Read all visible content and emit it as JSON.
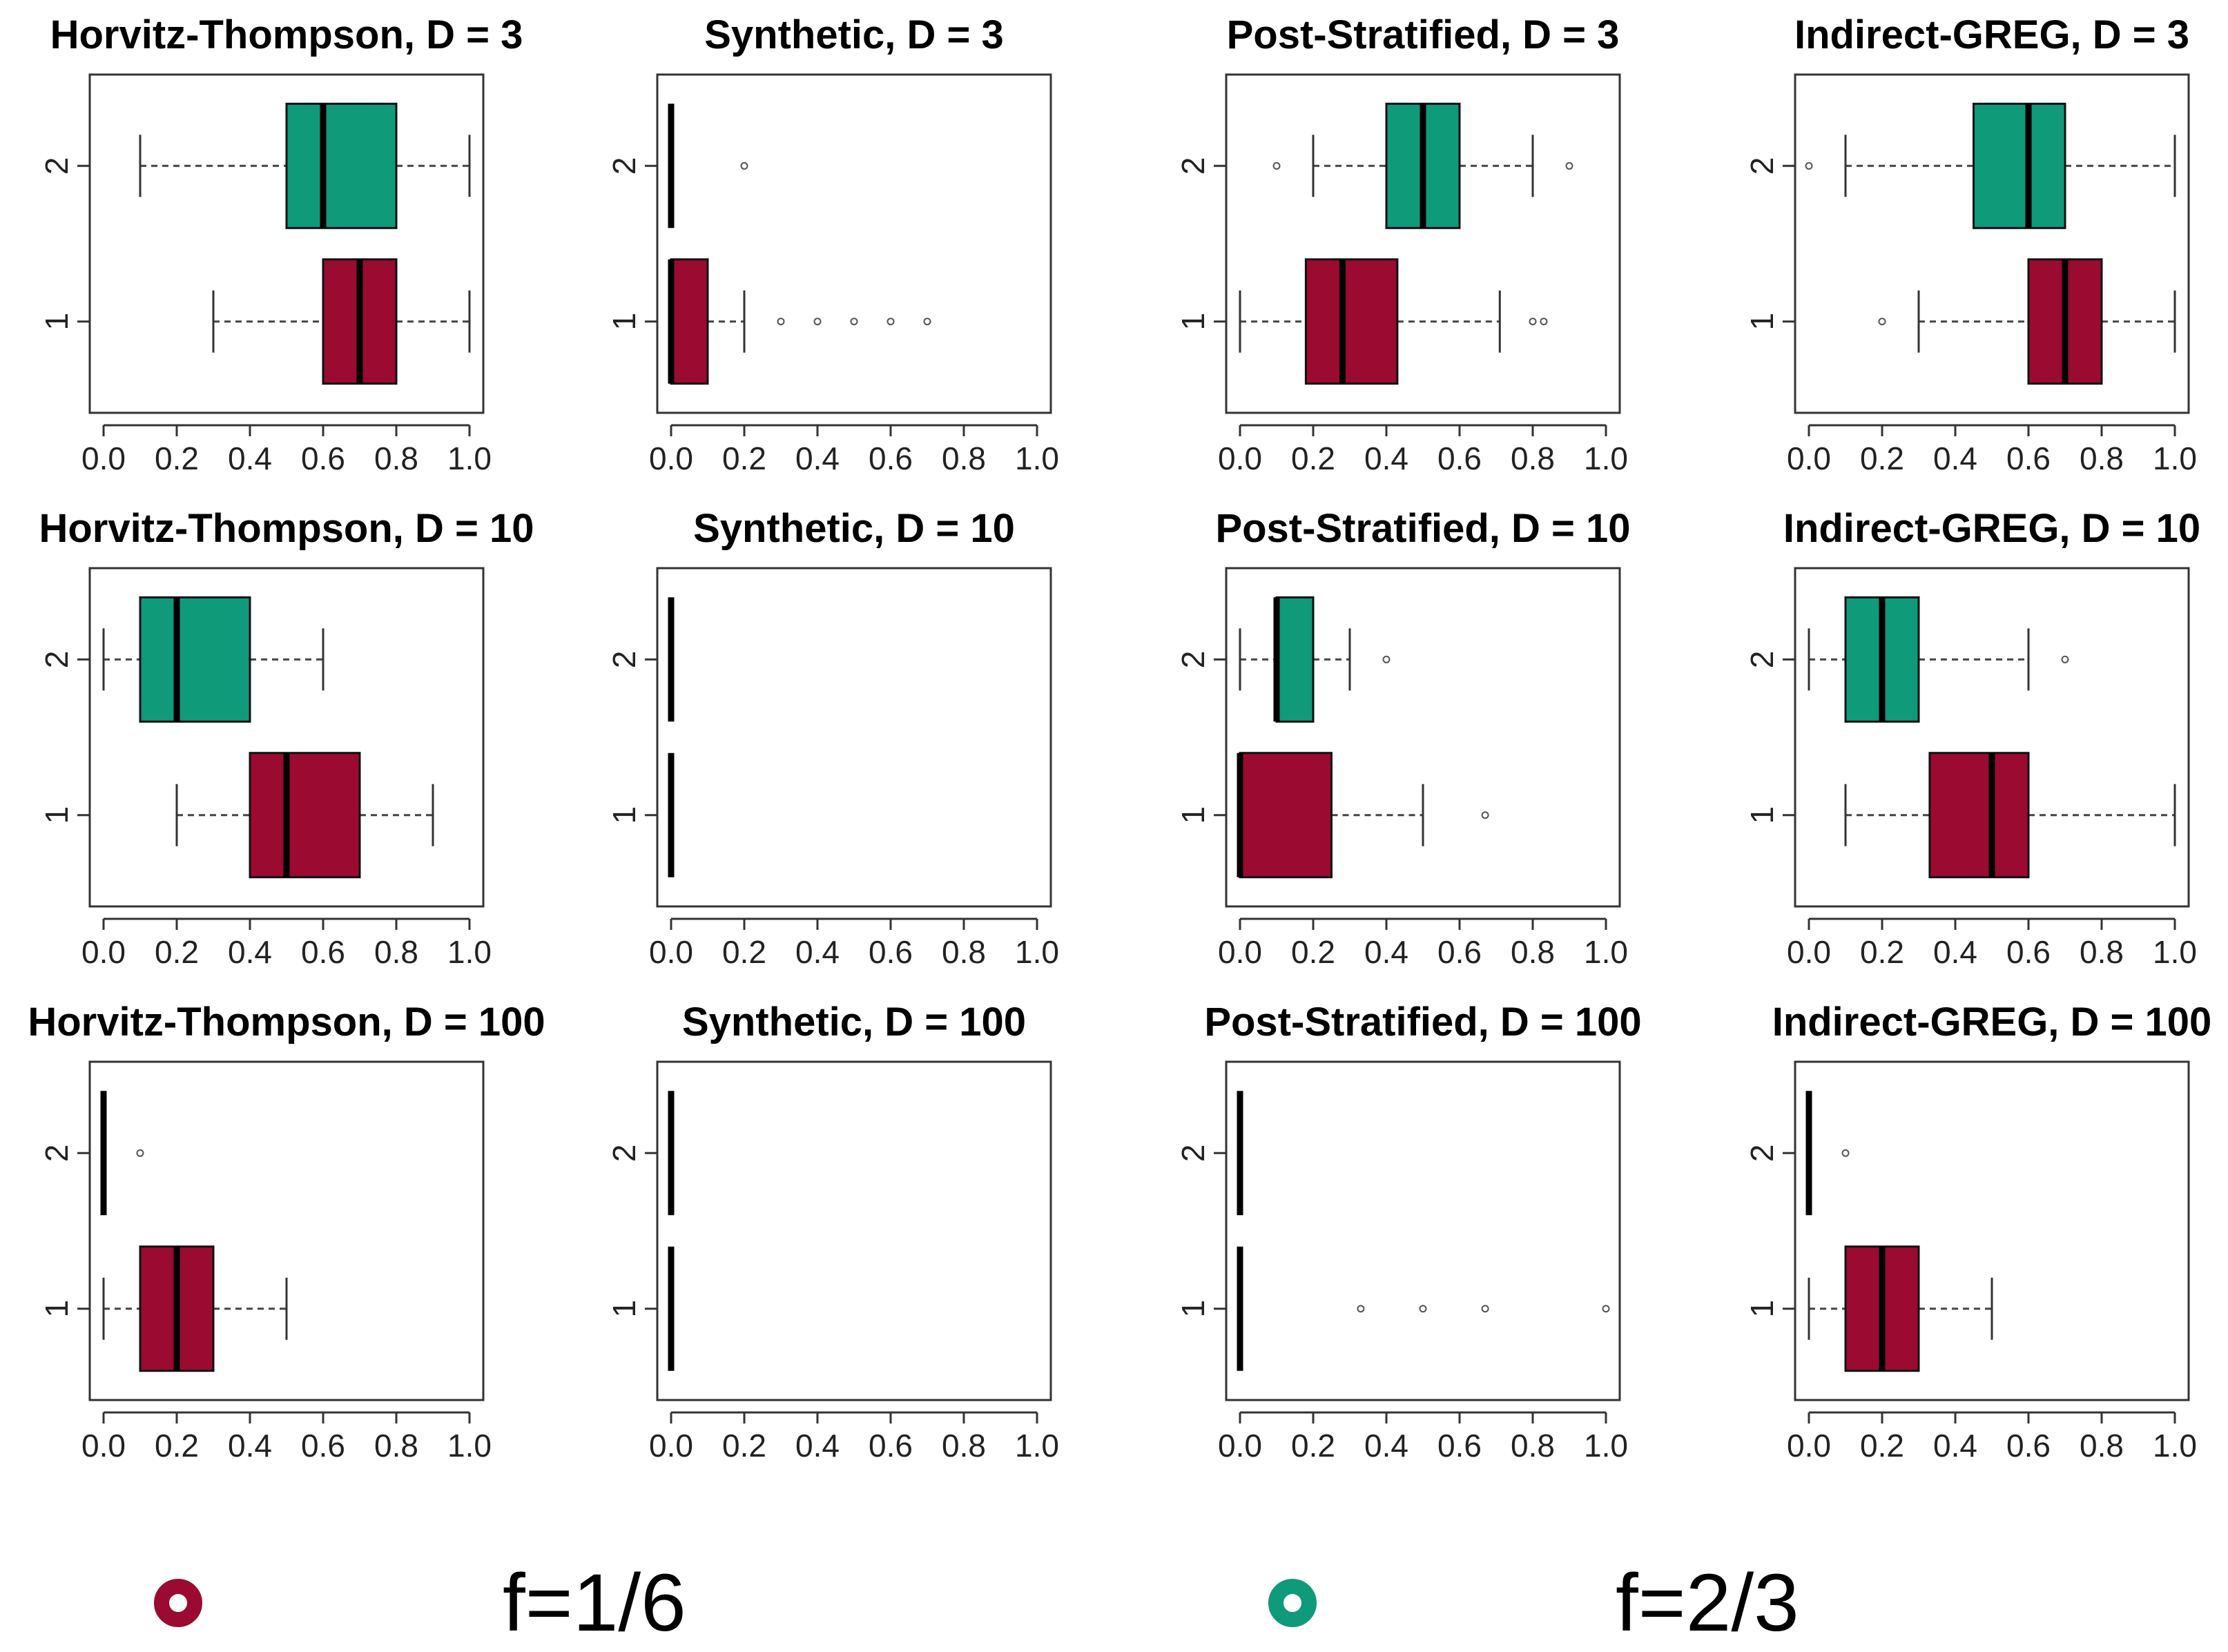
{
  "chart_data": {
    "type": "boxplot",
    "x_ticks": [
      "0.0",
      "0.2",
      "0.4",
      "0.6",
      "0.8",
      "1.0"
    ],
    "xlim": [
      0,
      1
    ],
    "y_ticks": [
      "1",
      "2"
    ],
    "series_colors": {
      "1": "#9b0a30",
      "2": "#0f9a7a"
    },
    "legend": [
      {
        "label": "f=1/6",
        "color": "#9b0a30"
      },
      {
        "label": "f=2/3",
        "color": "#0f9a7a"
      }
    ],
    "panels": [
      {
        "title": "Horvitz-Thompson, D = 3",
        "boxes": [
          {
            "group": "1",
            "whisker_low": 0.3,
            "q1": 0.6,
            "median": 0.7,
            "q3": 0.8,
            "whisker_high": 1.0,
            "outliers": []
          },
          {
            "group": "2",
            "whisker_low": 0.1,
            "q1": 0.5,
            "median": 0.6,
            "q3": 0.8,
            "whisker_high": 1.0,
            "outliers": []
          }
        ]
      },
      {
        "title": "Synthetic, D = 3",
        "boxes": [
          {
            "group": "1",
            "whisker_low": 0.0,
            "q1": 0.0,
            "median": 0.0,
            "q3": 0.1,
            "whisker_high": 0.2,
            "outliers": [
              0.3,
              0.4,
              0.5,
              0.6,
              0.7
            ]
          },
          {
            "group": "2",
            "whisker_low": 0.0,
            "q1": 0.0,
            "median": 0.0,
            "q3": 0.0,
            "whisker_high": 0.0,
            "outliers": [
              0.2
            ]
          }
        ]
      },
      {
        "title": "Post-Stratified, D = 3",
        "boxes": [
          {
            "group": "1",
            "whisker_low": 0.0,
            "q1": 0.18,
            "median": 0.28,
            "q3": 0.43,
            "whisker_high": 0.71,
            "outliers": [
              0.8,
              0.83
            ]
          },
          {
            "group": "2",
            "whisker_low": 0.2,
            "q1": 0.4,
            "median": 0.5,
            "q3": 0.6,
            "whisker_high": 0.8,
            "outliers": [
              0.1,
              0.9
            ]
          }
        ]
      },
      {
        "title": "Indirect-GREG, D = 3",
        "boxes": [
          {
            "group": "1",
            "whisker_low": 0.3,
            "q1": 0.6,
            "median": 0.7,
            "q3": 0.8,
            "whisker_high": 1.0,
            "outliers": [
              0.2
            ]
          },
          {
            "group": "2",
            "whisker_low": 0.1,
            "q1": 0.45,
            "median": 0.6,
            "q3": 0.7,
            "whisker_high": 1.0,
            "outliers": [
              0.0
            ]
          }
        ]
      },
      {
        "title": "Horvitz-Thompson, D = 10",
        "boxes": [
          {
            "group": "1",
            "whisker_low": 0.2,
            "q1": 0.4,
            "median": 0.5,
            "q3": 0.7,
            "whisker_high": 0.9,
            "outliers": []
          },
          {
            "group": "2",
            "whisker_low": 0.0,
            "q1": 0.1,
            "median": 0.2,
            "q3": 0.4,
            "whisker_high": 0.6,
            "outliers": []
          }
        ]
      },
      {
        "title": "Synthetic, D = 10",
        "boxes": [
          {
            "group": "1",
            "whisker_low": 0.0,
            "q1": 0.0,
            "median": 0.0,
            "q3": 0.0,
            "whisker_high": 0.0,
            "outliers": []
          },
          {
            "group": "2",
            "whisker_low": 0.0,
            "q1": 0.0,
            "median": 0.0,
            "q3": 0.0,
            "whisker_high": 0.0,
            "outliers": []
          }
        ]
      },
      {
        "title": "Post-Stratified, D = 10",
        "boxes": [
          {
            "group": "1",
            "whisker_low": 0.0,
            "q1": 0.0,
            "median": 0.0,
            "q3": 0.25,
            "whisker_high": 0.5,
            "outliers": [
              0.67
            ]
          },
          {
            "group": "2",
            "whisker_low": 0.0,
            "q1": 0.1,
            "median": 0.1,
            "q3": 0.2,
            "whisker_high": 0.3,
            "outliers": [
              0.4
            ]
          }
        ]
      },
      {
        "title": "Indirect-GREG, D = 10",
        "boxes": [
          {
            "group": "1",
            "whisker_low": 0.1,
            "q1": 0.33,
            "median": 0.5,
            "q3": 0.6,
            "whisker_high": 1.0,
            "outliers": []
          },
          {
            "group": "2",
            "whisker_low": 0.0,
            "q1": 0.1,
            "median": 0.2,
            "q3": 0.3,
            "whisker_high": 0.6,
            "outliers": [
              0.7
            ]
          }
        ]
      },
      {
        "title": "Horvitz-Thompson, D = 100",
        "boxes": [
          {
            "group": "1",
            "whisker_low": 0.0,
            "q1": 0.1,
            "median": 0.2,
            "q3": 0.3,
            "whisker_high": 0.5,
            "outliers": []
          },
          {
            "group": "2",
            "whisker_low": 0.0,
            "q1": 0.0,
            "median": 0.0,
            "q3": 0.0,
            "whisker_high": 0.0,
            "outliers": [
              0.1
            ]
          }
        ]
      },
      {
        "title": "Synthetic, D = 100",
        "boxes": [
          {
            "group": "1",
            "whisker_low": 0.0,
            "q1": 0.0,
            "median": 0.0,
            "q3": 0.0,
            "whisker_high": 0.0,
            "outliers": []
          },
          {
            "group": "2",
            "whisker_low": 0.0,
            "q1": 0.0,
            "median": 0.0,
            "q3": 0.0,
            "whisker_high": 0.0,
            "outliers": []
          }
        ]
      },
      {
        "title": "Post-Stratified, D = 100",
        "boxes": [
          {
            "group": "1",
            "whisker_low": 0.0,
            "q1": 0.0,
            "median": 0.0,
            "q3": 0.0,
            "whisker_high": 0.0,
            "outliers": [
              0.33,
              0.5,
              0.67,
              1.0
            ]
          },
          {
            "group": "2",
            "whisker_low": 0.0,
            "q1": 0.0,
            "median": 0.0,
            "q3": 0.0,
            "whisker_high": 0.0,
            "outliers": []
          }
        ]
      },
      {
        "title": "Indirect-GREG, D = 100",
        "boxes": [
          {
            "group": "1",
            "whisker_low": 0.0,
            "q1": 0.1,
            "median": 0.2,
            "q3": 0.3,
            "whisker_high": 0.5,
            "outliers": []
          },
          {
            "group": "2",
            "whisker_low": 0.0,
            "q1": 0.0,
            "median": 0.0,
            "q3": 0.0,
            "whisker_high": 0.0,
            "outliers": [
              0.1
            ]
          }
        ]
      }
    ]
  }
}
